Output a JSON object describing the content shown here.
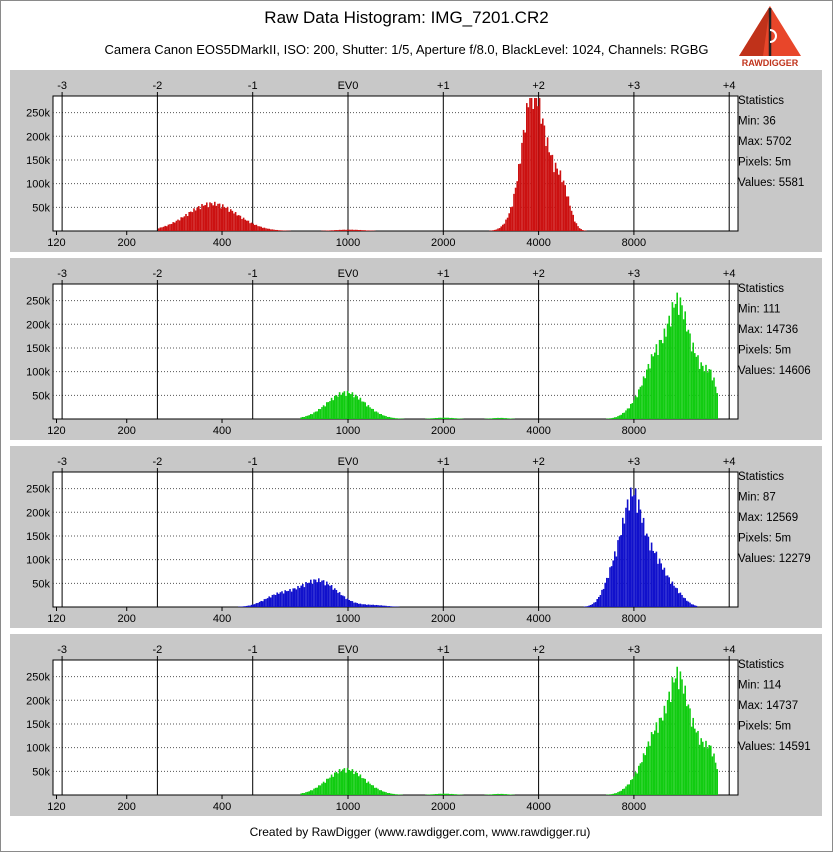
{
  "title": "Raw Data Histogram: IMG_7201.CR2",
  "subtitle": "Camera Canon EOS5DMarkII, ISO: 200, Shutter: 1/5, Aperture f/8.0, BlackLevel: 1024, Channels: RGBG",
  "footer": "Created by RawDigger (www.rawdigger.com, www.rawdigger.ru)",
  "logo_text": "RAWDIGGER",
  "colors": {
    "panel_bg": "#c8c8c8",
    "plot_bg": "#ffffff",
    "red": "#cc1111",
    "green": "#11cc11",
    "blue": "#1111cc"
  },
  "chart_data": [
    {
      "type": "area",
      "channel": "R",
      "color": "#cc1111",
      "ev_ticks": [
        "-3",
        "-2",
        "-1",
        "EV0",
        "+1",
        "+2",
        "+3",
        "+4"
      ],
      "value_ticks": [
        120,
        200,
        400,
        1000,
        2000,
        4000,
        8000
      ],
      "y_ticks": [
        "50k",
        "100k",
        "150k",
        "200k",
        "250k"
      ],
      "ylim": [
        0,
        285000
      ],
      "stats": {
        "heading": "Statistics",
        "min": "Min: 36",
        "max": "Max: 5702",
        "pixels": "Pixels: 5m",
        "values": "Values: 5581"
      },
      "peaks": [
        {
          "center": 370,
          "height": 62000,
          "width": 0.12
        },
        {
          "center": 1000,
          "height": 3000,
          "width": 0.07
        },
        {
          "center": 3820,
          "height": 275000,
          "width": 0.045
        },
        {
          "center": 4300,
          "height": 105000,
          "width": 0.04
        },
        {
          "center": 4750,
          "height": 85000,
          "width": 0.035
        },
        {
          "center": 3500,
          "height": 55000,
          "width": 0.05
        }
      ],
      "range": [
        250,
        5702
      ]
    },
    {
      "type": "area",
      "channel": "G",
      "color": "#11cc11",
      "ev_ticks": [
        "-3",
        "-2",
        "-1",
        "EV0",
        "+1",
        "+2",
        "+3",
        "+4"
      ],
      "value_ticks": [
        120,
        200,
        400,
        1000,
        2000,
        4000,
        8000
      ],
      "y_ticks": [
        "50k",
        "100k",
        "150k",
        "200k",
        "250k"
      ],
      "ylim": [
        0,
        285000
      ],
      "stats": {
        "heading": "Statistics",
        "min": "Min: 111",
        "max": "Max: 14736",
        "pixels": "Pixels: 5m",
        "values": "Values: 14606"
      },
      "peaks": [
        {
          "center": 980,
          "height": 60000,
          "width": 0.09
        },
        {
          "center": 2000,
          "height": 3000,
          "width": 0.05
        },
        {
          "center": 3000,
          "height": 2500,
          "width": 0.04
        },
        {
          "center": 11000,
          "height": 240000,
          "width": 0.045
        },
        {
          "center": 9500,
          "height": 120000,
          "width": 0.05
        },
        {
          "center": 12600,
          "height": 100000,
          "width": 0.04
        },
        {
          "center": 14000,
          "height": 80000,
          "width": 0.03
        },
        {
          "center": 8500,
          "height": 45000,
          "width": 0.06
        }
      ],
      "range": [
        700,
        14736
      ]
    },
    {
      "type": "area",
      "channel": "B",
      "color": "#1111cc",
      "ev_ticks": [
        "-3",
        "-2",
        "-1",
        "EV0",
        "+1",
        "+2",
        "+3",
        "+4"
      ],
      "value_ticks": [
        120,
        200,
        400,
        1000,
        2000,
        4000,
        8000
      ],
      "y_ticks": [
        "50k",
        "100k",
        "150k",
        "200k",
        "250k"
      ],
      "ylim": [
        0,
        285000
      ],
      "stats": {
        "heading": "Statistics",
        "min": "Min: 87",
        "max": "Max: 12569",
        "pixels": "Pixels: 5m",
        "values": "Values: 12279"
      },
      "peaks": [
        {
          "center": 800,
          "height": 60000,
          "width": 0.09
        },
        {
          "center": 600,
          "height": 25000,
          "width": 0.07
        },
        {
          "center": 1200,
          "height": 4000,
          "width": 0.06
        },
        {
          "center": 7950,
          "height": 225000,
          "width": 0.045
        },
        {
          "center": 7000,
          "height": 90000,
          "width": 0.05
        },
        {
          "center": 9200,
          "height": 95000,
          "width": 0.045
        },
        {
          "center": 10500,
          "height": 40000,
          "width": 0.05
        }
      ],
      "range": [
        400,
        12569
      ]
    },
    {
      "type": "area",
      "channel": "G2",
      "color": "#11cc11",
      "ev_ticks": [
        "-3",
        "-2",
        "-1",
        "EV0",
        "+1",
        "+2",
        "+3",
        "+4"
      ],
      "value_ticks": [
        120,
        200,
        400,
        1000,
        2000,
        4000,
        8000
      ],
      "y_ticks": [
        "50k",
        "100k",
        "150k",
        "200k",
        "250k"
      ],
      "ylim": [
        0,
        285000
      ],
      "stats": {
        "heading": "Statistics",
        "min": "Min: 114",
        "max": "Max: 14737",
        "pixels": "Pixels: 5m",
        "values": "Values: 14591"
      },
      "peaks": [
        {
          "center": 980,
          "height": 58000,
          "width": 0.09
        },
        {
          "center": 2000,
          "height": 3000,
          "width": 0.05
        },
        {
          "center": 3000,
          "height": 2500,
          "width": 0.04
        },
        {
          "center": 11000,
          "height": 245000,
          "width": 0.045
        },
        {
          "center": 9500,
          "height": 115000,
          "width": 0.05
        },
        {
          "center": 12600,
          "height": 100000,
          "width": 0.04
        },
        {
          "center": 14000,
          "height": 80000,
          "width": 0.03
        },
        {
          "center": 8500,
          "height": 45000,
          "width": 0.06
        }
      ],
      "range": [
        700,
        14737
      ]
    }
  ]
}
